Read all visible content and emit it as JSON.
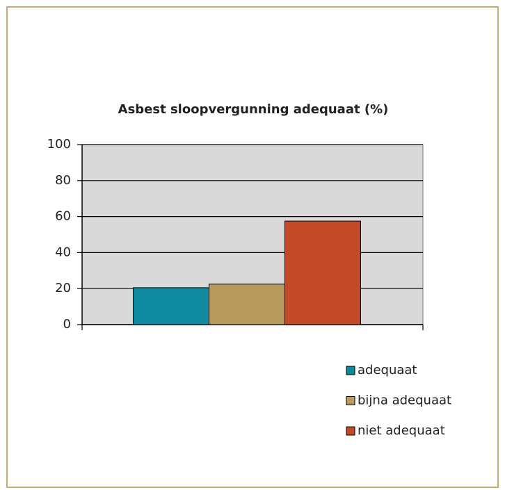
{
  "chart_data": {
    "type": "bar",
    "title": "Asbest sloopvergunning adequaat (%)",
    "categories": [
      null
    ],
    "series": [
      {
        "name": "adequaat",
        "color": "#108a9f",
        "values": [
          20.5
        ]
      },
      {
        "name": "bijna adequaat",
        "color": "#b89a5c",
        "values": [
          22.5
        ]
      },
      {
        "name": "niet adequaat",
        "color": "#c24a28",
        "values": [
          57.5
        ]
      }
    ],
    "ylim": [
      0,
      100
    ],
    "yticks": [
      0,
      20,
      40,
      60,
      80,
      100
    ],
    "grid": true,
    "legend": "bottom-right"
  }
}
